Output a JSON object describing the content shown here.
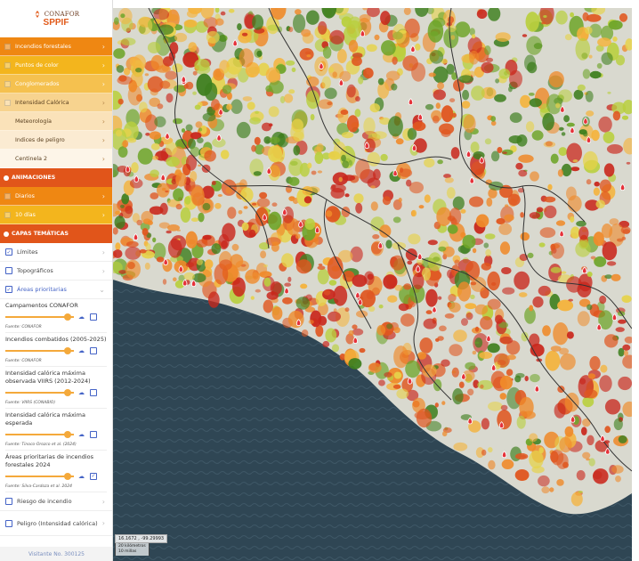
{
  "logo": {
    "brand": "CONAFOR",
    "product": "SPPIF"
  },
  "menu": {
    "items": [
      {
        "label": "Incendios forestales",
        "color": "#ef8712"
      },
      {
        "label": "Puntos de color",
        "color": "#f3b51d"
      },
      {
        "label": "Conglomerados",
        "color": "#f5c14f"
      },
      {
        "label": "Intensidad Calórica",
        "color": "#f7d38f"
      },
      {
        "label": "Meteorología",
        "color": "#fae2b9"
      },
      {
        "label": "Índices de peligro",
        "color": "#fbebd2"
      },
      {
        "label": "Centinela 2",
        "color": "#fdf5e8"
      }
    ]
  },
  "animaciones": {
    "title": "ANIMACIONES",
    "items": [
      {
        "label": "Diarios",
        "color": "#ef8712"
      },
      {
        "label": "10 días",
        "color": "#f3b51d"
      }
    ]
  },
  "capas": {
    "title": "CAPAS TEMÁTICAS",
    "items": [
      {
        "label": "Límites",
        "checked": true
      },
      {
        "label": "Topográficos",
        "checked": false
      },
      {
        "label": "Áreas prioritarias",
        "checked": true
      }
    ],
    "sublayers": [
      {
        "title": "Campamentos CONAFOR",
        "source": "Fuente: CONAFOR",
        "checked": false
      },
      {
        "title": "Incendios combatidos (2005-2025)",
        "source": "Fuente: CONAFOR",
        "checked": false
      },
      {
        "title": "Intensidad calórica máxima observada VIIRS (2012-2024)",
        "source": "Fuente: VIIRS (CONABIO)",
        "checked": false
      },
      {
        "title": "Intensidad calórica máxima esperada",
        "source": "Fuente: Tinoco-Orozco et al. (2024)",
        "checked": false
      },
      {
        "title": "Áreas prioritarias de incendios forestales 2024",
        "source": "Fuente: Silva-Cardoza et al. 2024",
        "checked": true
      }
    ],
    "extra": [
      {
        "label": "Riesgo de incendio",
        "checked": false
      },
      {
        "label": "Peligro (Intensidad calórica)",
        "checked": false
      }
    ]
  },
  "visitors": "Visitante No. 300125",
  "map": {
    "coords": "16.1672 , -99.29993",
    "scale_km": "20 kilómetros",
    "scale_mi": "10 millas"
  }
}
